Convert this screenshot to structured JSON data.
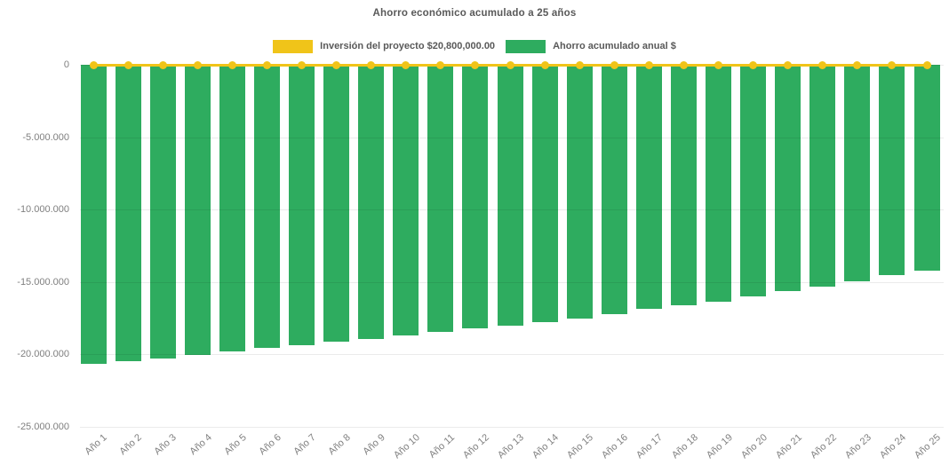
{
  "page": {
    "background_color": "#ffffff",
    "text_color_primary": "#595959",
    "text_color_axis": "#7f7f7f"
  },
  "chart_data": {
    "type": "bar",
    "title": "Ahorro económico acumulado a 25 años",
    "categories": [
      "Año 1",
      "Año 2",
      "Año 3",
      "Año 4",
      "Año 5",
      "Año 6",
      "Año 7",
      "Año 8",
      "Año 9",
      "Año 10",
      "Año 11",
      "Año 12",
      "Año 13",
      "Año 14",
      "Año 15",
      "Año 16",
      "Año 17",
      "Año 18",
      "Año 19",
      "Año 20",
      "Año 21",
      "Año 22",
      "Año 23",
      "Año 24",
      "Año 25"
    ],
    "series": [
      {
        "name": "Inversión del proyecto $20,800,000.00",
        "type": "line",
        "color": "#F0C419",
        "marker": "circle",
        "values": [
          0,
          0,
          0,
          0,
          0,
          0,
          0,
          0,
          0,
          0,
          0,
          0,
          0,
          0,
          0,
          0,
          0,
          0,
          0,
          0,
          0,
          0,
          0,
          0,
          0
        ],
        "note": "flat yellow line with round markers drawn along the zero axis"
      },
      {
        "name": "Ahorro acumulado anual $",
        "type": "bar",
        "color": "#2EAC5F",
        "values": [
          -20700000,
          -20480000,
          -20280000,
          -20040000,
          -19810000,
          -19590000,
          -19370000,
          -19140000,
          -18940000,
          -18720000,
          -18490000,
          -18250000,
          -18010000,
          -17770000,
          -17550000,
          -17260000,
          -16890000,
          -16620000,
          -16350000,
          -16020000,
          -15640000,
          -15330000,
          -14960000,
          -14570000,
          -14210000
        ]
      }
    ],
    "xlabel": "",
    "ylabel": "",
    "ylim": [
      -25000000,
      0
    ],
    "y_ticks": {
      "values": [
        0,
        -5000000,
        -10000000,
        -15000000,
        -20000000,
        -25000000
      ],
      "labels": [
        "0",
        "-5.000.000",
        "-10.000.000",
        "-15.000.000",
        "-20.000.000",
        "-25.000.000"
      ]
    },
    "legend_position": "top-center",
    "grid": "horizontal-faint",
    "x_label_rotation": -42
  }
}
